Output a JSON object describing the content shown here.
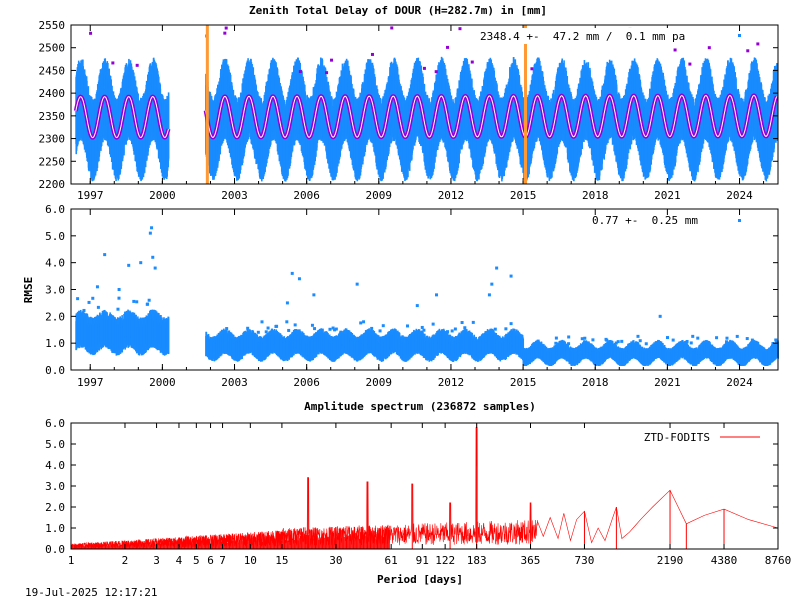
{
  "timestamp": "19-Jul-2025 12:17:21",
  "colors": {
    "ztd": "#1a8cff",
    "fit": "#9400d3",
    "outlier": "#9400d3",
    "event": "#ff9933",
    "spectrum": "#ff0000"
  },
  "chart_data": [
    {
      "type": "scatter",
      "title": "Zenith Total Delay of DOUR (H=282.7m) in [mm]",
      "annotation": "2348.4 +-  47.2 mm /  0.1 mm pa",
      "xlabel": "",
      "ylabel": "",
      "xlim": [
        1996.2,
        2025.6
      ],
      "ylim": [
        2200,
        2550
      ],
      "x_ticks": [
        1997,
        2000,
        2003,
        2006,
        2009,
        2012,
        2015,
        2018,
        2021,
        2024
      ],
      "y_ticks": [
        2200,
        2250,
        2300,
        2350,
        2400,
        2450,
        2500,
        2550
      ],
      "data_gap": [
        2000.25,
        2001.8
      ],
      "series": [
        {
          "role": "observations",
          "mean": 2340,
          "spread_low": 2240,
          "spread_high": 2480,
          "annual_amplitude": 45
        },
        {
          "role": "fit",
          "mean": 2348.4,
          "annual_amplitude": 45,
          "trend_mm_per_year": 0.1
        }
      ],
      "events": [
        2001.87,
        2015.1
      ]
    },
    {
      "type": "scatter",
      "title": "",
      "annotation": "0.77 +-  0.25 mm",
      "xlabel": "",
      "ylabel": "RMSE",
      "xlim": [
        1996.2,
        2025.6
      ],
      "ylim": [
        0.0,
        6.0
      ],
      "x_ticks": [
        1997,
        2000,
        2003,
        2006,
        2009,
        2012,
        2015,
        2018,
        2021,
        2024
      ],
      "y_ticks": [
        "0.0",
        "1.0",
        "2.0",
        "3.0",
        "4.0",
        "5.0",
        "6.0"
      ],
      "data_gap": [
        2000.25,
        2001.8
      ],
      "segments": [
        {
          "from": 1996.4,
          "to": 2000.25,
          "mean": 1.35,
          "spread": 0.45
        },
        {
          "from": 2001.8,
          "to": 2015.0,
          "mean": 0.9,
          "spread": 0.3
        },
        {
          "from": 2015.0,
          "to": 2025.6,
          "mean": 0.6,
          "spread": 0.22
        }
      ],
      "outliers": [
        [
          1997.3,
          3.1
        ],
        [
          1997.6,
          4.3
        ],
        [
          1998.2,
          3.0
        ],
        [
          1998.6,
          3.9
        ],
        [
          1999.1,
          4.0
        ],
        [
          1999.5,
          5.1
        ],
        [
          1999.55,
          5.3
        ],
        [
          1999.6,
          4.2
        ],
        [
          1999.7,
          3.8
        ],
        [
          1999.45,
          2.6
        ],
        [
          2005.4,
          3.6
        ],
        [
          2005.7,
          3.4
        ],
        [
          2005.2,
          2.5
        ],
        [
          2006.3,
          2.8
        ],
        [
          2008.1,
          3.2
        ],
        [
          2010.6,
          2.4
        ],
        [
          2011.4,
          2.8
        ],
        [
          2013.6,
          2.8
        ],
        [
          2013.7,
          3.2
        ],
        [
          2013.9,
          3.8
        ],
        [
          2014.5,
          3.5
        ],
        [
          2020.7,
          2.0
        ]
      ]
    },
    {
      "type": "line",
      "title": "Amplitude spectrum (236872 samples)",
      "xlabel": "Period [days]",
      "ylabel": "",
      "x_scale": "log",
      "xlim": [
        1,
        8760
      ],
      "ylim": [
        0.0,
        6.0
      ],
      "x_ticks": [
        1,
        2,
        3,
        4,
        5,
        6,
        7,
        10,
        15,
        30,
        61,
        91,
        122,
        183,
        365,
        730,
        2190,
        4380,
        8760
      ],
      "y_ticks": [
        "0.0",
        "1.0",
        "2.0",
        "3.0",
        "4.0",
        "5.0",
        "6.0"
      ],
      "series": [
        {
          "name": "ZTD-FODITS",
          "peaks": [
            [
              182.6,
              5.8
            ],
            [
              365.25,
              2.2
            ],
            [
              730,
              1.8
            ],
            [
              1100,
              2.0
            ],
            [
              2190,
              2.8
            ],
            [
              2700,
              1.2
            ],
            [
              4380,
              1.9
            ],
            [
              8760,
              1.0
            ],
            [
              21,
              3.4
            ],
            [
              45,
              3.2
            ],
            [
              80,
              3.1
            ],
            [
              130,
              2.2
            ]
          ]
        }
      ]
    }
  ]
}
